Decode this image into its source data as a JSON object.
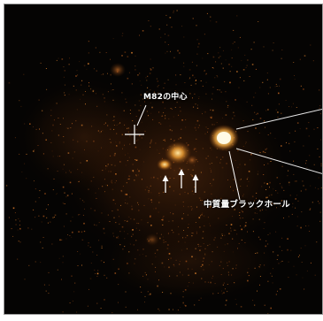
{
  "image": {
    "labels": {
      "galaxy_center": "M82の中心",
      "black_hole": "中質量ブラックホール"
    },
    "colors": {
      "background": "#050403",
      "emission": "#d2772a",
      "core": "#fff2b0",
      "annotation": "#ffffff",
      "frame": "#9a9a9a"
    }
  }
}
